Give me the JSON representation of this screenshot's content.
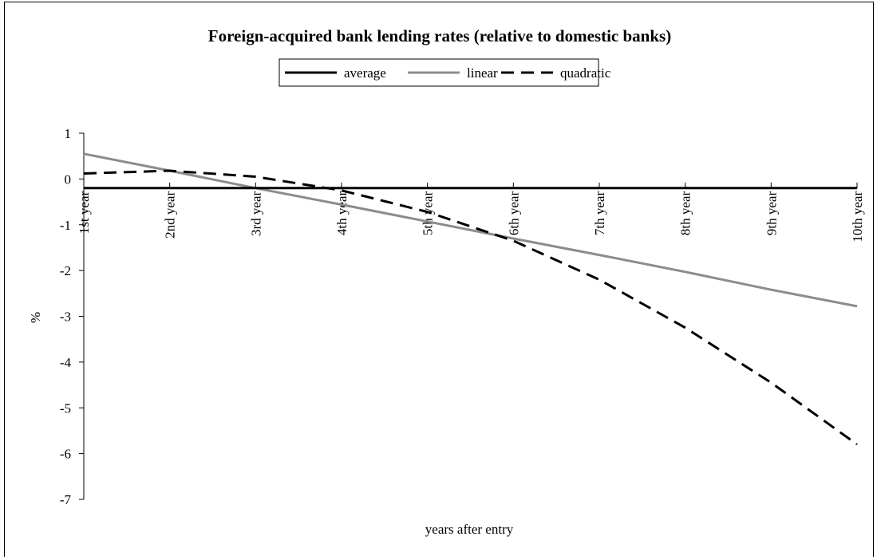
{
  "chart_data": {
    "type": "line",
    "title": "Foreign-acquired bank lending rates (relative to domestic banks)",
    "xlabel": "years after entry",
    "ylabel": "%",
    "categories": [
      "1st year",
      "2nd year",
      "3rd year",
      "4th year",
      "5th year",
      "6th year",
      "7th year",
      "8th year",
      "9th year",
      "10th year"
    ],
    "ylim": [
      -7,
      1
    ],
    "yticks": [
      1,
      0,
      -1,
      -2,
      -3,
      -4,
      -5,
      -6,
      -7
    ],
    "grid": false,
    "legend_position": "top-center",
    "series": [
      {
        "name": "average",
        "color": "#000000",
        "style": "solid",
        "values": [
          -0.2,
          -0.2,
          -0.2,
          -0.2,
          -0.2,
          -0.2,
          -0.2,
          -0.2,
          -0.2,
          -0.2
        ]
      },
      {
        "name": "linear",
        "color": "#8c8c8c",
        "style": "solid",
        "values": [
          0.55,
          0.18,
          -0.2,
          -0.56,
          -0.93,
          -1.3,
          -1.66,
          -2.03,
          -2.42,
          -2.78
        ]
      },
      {
        "name": "quadratic",
        "color": "#000000",
        "style": "dashed",
        "values": [
          0.12,
          0.18,
          0.05,
          -0.25,
          -0.72,
          -1.35,
          -2.2,
          -3.25,
          -4.45,
          -5.8
        ]
      }
    ]
  }
}
